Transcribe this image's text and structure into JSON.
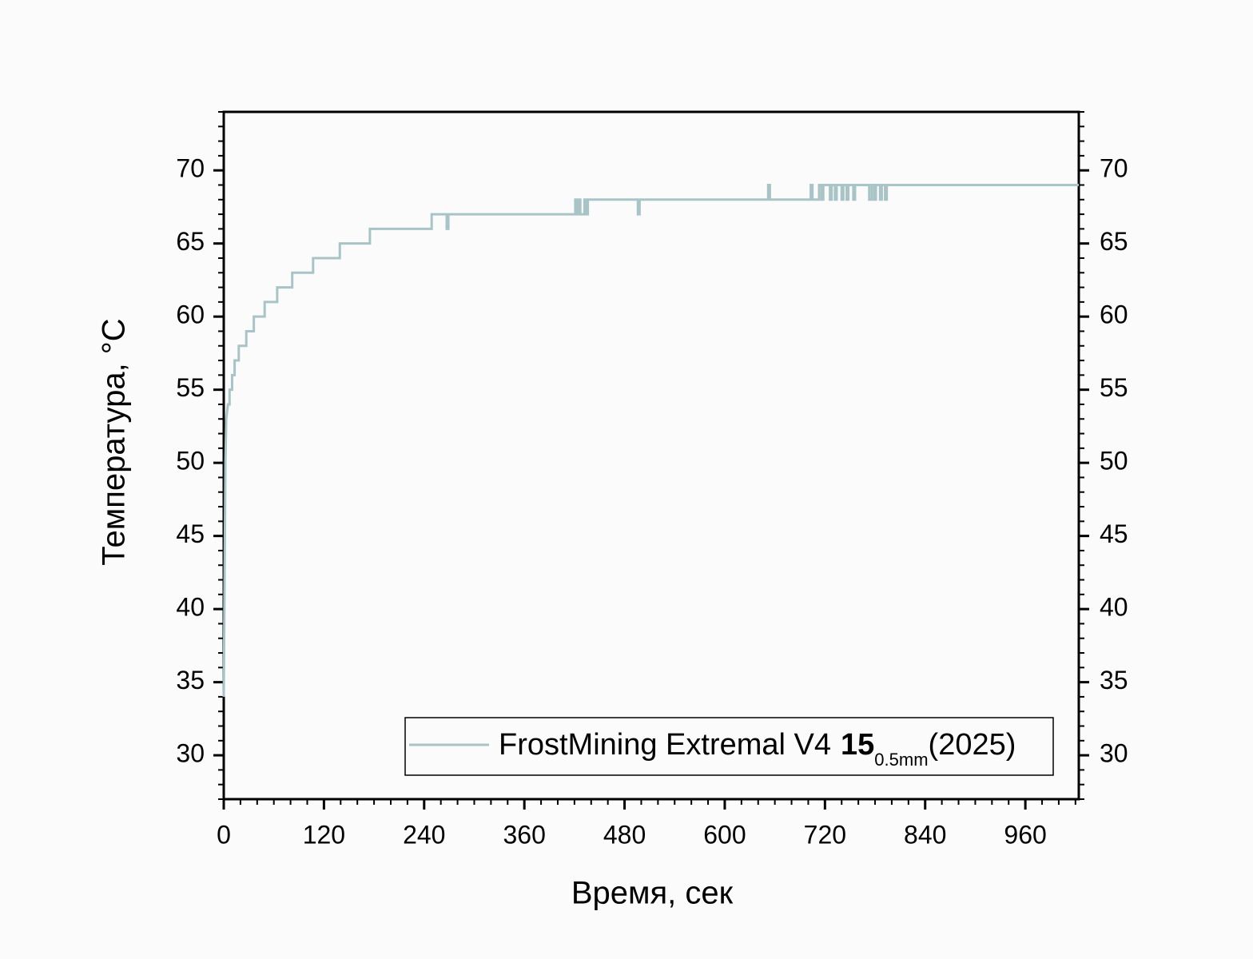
{
  "chart_data": {
    "type": "line",
    "x_label": "Время, сек",
    "y_label": "Температура, °C",
    "xlim": [
      0,
      1024
    ],
    "ylim": [
      27,
      74
    ],
    "xticks": [
      0,
      120,
      240,
      360,
      480,
      600,
      720,
      840,
      960
    ],
    "yticks": [
      30,
      35,
      40,
      45,
      50,
      55,
      60,
      65,
      70
    ],
    "x_minor_ticks": [
      0,
      20,
      40,
      60,
      80,
      100,
      120,
      140,
      160,
      180,
      200,
      220,
      240,
      260,
      280,
      300,
      320,
      340,
      360,
      380,
      400,
      420,
      440,
      460,
      480,
      500,
      520,
      540,
      560,
      580,
      600,
      620,
      640,
      660,
      680,
      700,
      720,
      740,
      760,
      780,
      800,
      820,
      840,
      860,
      880,
      900,
      920,
      940,
      960,
      980,
      1000,
      1020
    ],
    "y_minor_ticks": [
      27,
      28,
      29,
      30,
      31,
      32,
      33,
      34,
      35,
      36,
      37,
      38,
      39,
      40,
      41,
      42,
      43,
      44,
      45,
      46,
      47,
      48,
      49,
      50,
      51,
      52,
      53,
      54,
      55,
      56,
      57,
      58,
      59,
      60,
      61,
      62,
      63,
      64,
      65,
      66,
      67,
      68,
      69,
      70,
      71,
      72,
      73,
      74
    ],
    "mirror_y_axis": true,
    "legend": "lower right",
    "x": [
      0,
      2,
      3,
      5,
      7,
      7,
      10,
      10,
      13,
      13,
      18,
      18,
      27,
      27,
      36,
      36,
      49,
      49,
      64,
      64,
      82,
      82,
      107,
      107,
      139,
      139,
      175,
      175,
      249,
      249,
      267,
      267,
      269,
      269,
      421,
      421,
      423,
      423,
      425,
      425,
      427,
      427,
      432,
      432,
      434,
      434,
      436,
      436,
      496,
      496,
      498,
      498,
      652,
      652,
      654,
      654,
      703,
      703,
      705,
      705,
      713,
      713,
      716,
      716,
      718,
      718,
      726,
      726,
      728,
      728,
      732,
      732,
      734,
      734,
      740,
      740,
      742,
      742,
      746,
      746,
      748,
      748,
      754,
      754,
      756,
      756,
      773,
      773,
      776,
      776,
      779,
      779,
      781,
      781,
      786,
      786,
      788,
      788,
      792,
      792,
      794,
      794,
      1024
    ],
    "series": [
      {
        "name": "FrostMining Extremal V4",
        "name_bold": "15",
        "name_sub": "0.5mm",
        "name_suffix": "(2025)",
        "color": "#a9c4c6",
        "values": [
          34,
          50,
          53,
          54,
          54,
          55,
          55,
          56,
          56,
          57,
          57,
          58,
          58,
          59,
          59,
          60,
          60,
          61,
          61,
          62,
          62,
          63,
          63,
          64,
          64,
          65,
          65,
          66,
          66,
          67,
          67,
          66,
          66,
          67,
          67,
          68,
          68,
          67,
          67,
          68,
          68,
          67,
          67,
          68,
          68,
          67,
          67,
          68,
          68,
          67,
          67,
          68,
          68,
          69,
          69,
          68,
          68,
          69,
          69,
          68,
          68,
          69,
          69,
          68,
          68,
          69,
          69,
          68,
          68,
          69,
          69,
          68,
          68,
          69,
          69,
          68,
          68,
          69,
          69,
          68,
          68,
          69,
          69,
          68,
          68,
          69,
          69,
          68,
          68,
          69,
          69,
          68,
          68,
          69,
          69,
          68,
          68,
          69,
          69,
          68,
          68,
          69,
          69
        ]
      }
    ]
  }
}
